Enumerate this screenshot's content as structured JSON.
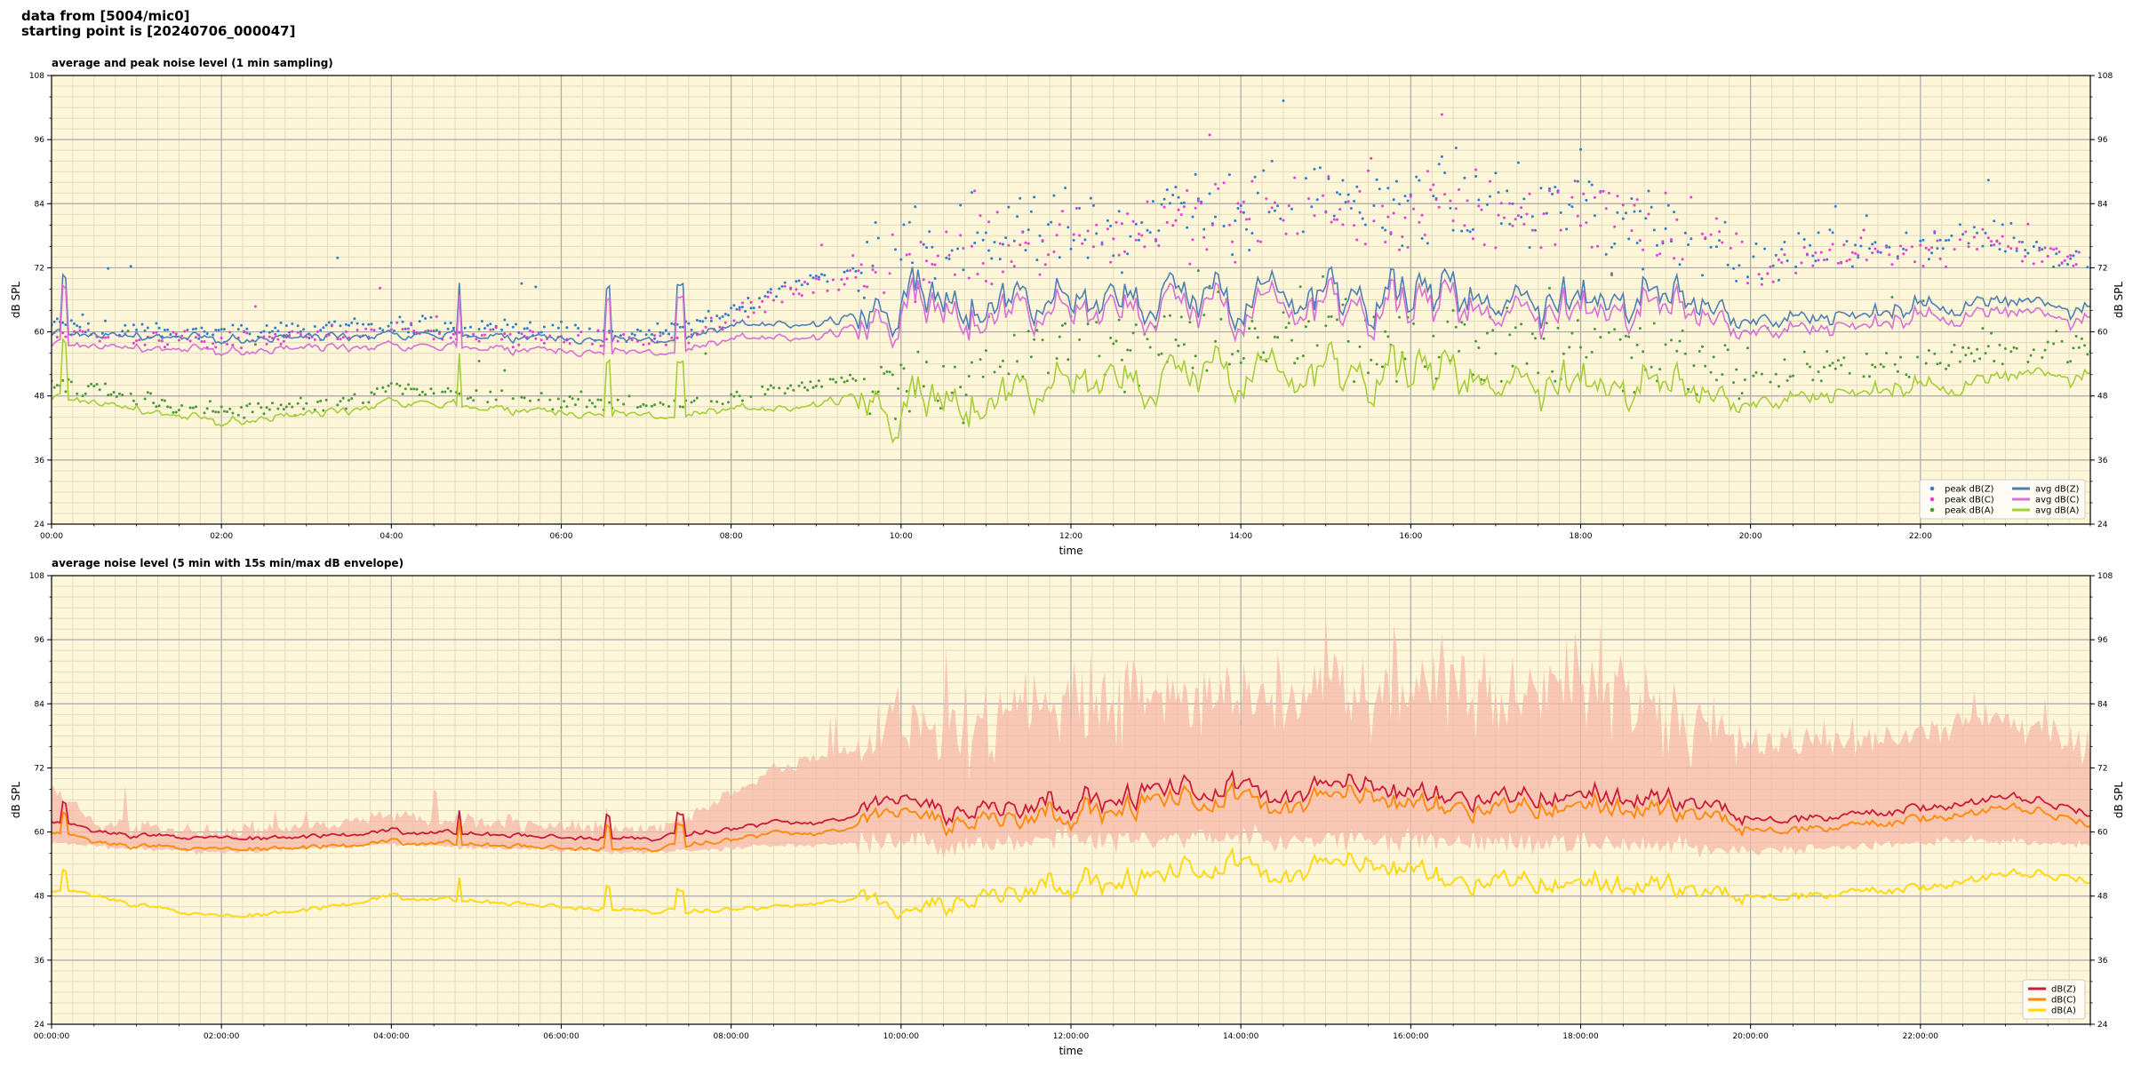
{
  "header": {
    "source_line": "data from [5004/mic0]",
    "start_line": "starting point is [20240706_000047]"
  },
  "colors": {
    "background": "#fdf6d8",
    "grid_major": "#a9a9a9",
    "grid_minor": "#e5dcc0",
    "peak_z": "#2f7fcf",
    "peak_c": "#e83cd8",
    "peak_a": "#4a9a3a",
    "avg_z": "#4e7fb5",
    "avg_c": "#d86fd8",
    "avg_a": "#a6cf3a",
    "env_fill": "#f5b8a8",
    "dbz": "#cc1a3a",
    "dbc": "#ff8800",
    "dba": "#ffd700"
  },
  "chart_data": [
    {
      "type": "line",
      "title": "average and peak noise level (1 min sampling)",
      "xlabel": "time",
      "ylabel": "dB SPL",
      "ylim": [
        24,
        108
      ],
      "xlim": [
        0,
        24
      ],
      "x_tick_labels": [
        "00:00",
        "02:00",
        "04:00",
        "06:00",
        "08:00",
        "10:00",
        "12:00",
        "14:00",
        "16:00",
        "18:00",
        "20:00",
        "22:00"
      ],
      "y_tick_labels": [
        "24",
        "36",
        "48",
        "60",
        "72",
        "84",
        "96",
        "108"
      ],
      "grid": true,
      "legend_position": "bottom-right",
      "legend": [
        "peak dB(Z)",
        "peak dB(C)",
        "peak dB(A)",
        "avg dB(Z)",
        "avg dB(C)",
        "avg dB(A)"
      ],
      "hours": [
        0,
        0.5,
        1,
        1.5,
        2,
        2.5,
        3,
        3.5,
        4,
        4.5,
        5,
        5.5,
        6,
        6.5,
        7,
        7.5,
        8,
        8.5,
        9,
        9.5,
        10,
        10.5,
        11,
        11.5,
        12,
        12.5,
        13,
        13.5,
        14,
        14.5,
        15,
        15.5,
        16,
        16.5,
        17,
        17.5,
        18,
        18.5,
        19,
        19.5,
        20,
        20.5,
        21,
        21.5,
        22,
        22.5,
        23,
        23.5,
        24
      ],
      "series": [
        {
          "name": "avg dB(Z)",
          "kind": "line",
          "values": [
            60,
            59.6,
            59.2,
            58.8,
            58.5,
            58.7,
            59,
            59.4,
            60,
            59.7,
            59.4,
            59.1,
            58.9,
            58.7,
            58.5,
            58.8,
            60.5,
            62,
            61.5,
            62.5,
            66,
            64.5,
            65.5,
            67,
            66,
            65,
            67.5,
            67,
            68.5,
            67,
            69,
            67.5,
            67.5,
            67.5,
            67,
            66.5,
            67,
            66.5,
            65.5,
            65,
            62.5,
            63,
            63,
            63.5,
            64.5,
            66,
            65.5,
            65,
            63.5
          ]
        },
        {
          "name": "avg dB(C)",
          "kind": "line",
          "values": [
            58,
            57.5,
            57,
            56.5,
            56.3,
            56.5,
            57,
            57.3,
            58,
            57.5,
            57.2,
            56.8,
            56.6,
            56.4,
            56.2,
            56.5,
            58,
            59.5,
            59,
            60.5,
            64,
            62.5,
            63.5,
            65,
            64,
            63,
            65.5,
            65,
            66.5,
            65,
            67,
            65.5,
            65.5,
            65.5,
            65,
            64.5,
            65,
            64.5,
            63.5,
            63,
            60.5,
            61,
            61,
            61.5,
            62.5,
            64,
            63.5,
            63,
            61.5
          ]
        },
        {
          "name": "avg dB(A)",
          "kind": "line",
          "values": [
            48,
            47,
            45.5,
            44,
            43,
            43.8,
            44.5,
            45.5,
            47.5,
            46.8,
            46,
            45.5,
            45,
            44.8,
            44.5,
            44.2,
            45,
            46,
            46.5,
            47.5,
            45,
            46,
            47.5,
            50,
            51,
            50,
            51.5,
            53,
            55,
            52,
            55,
            53,
            53.5,
            52,
            52,
            51,
            51.5,
            50,
            49,
            48.5,
            47,
            48,
            48.5,
            49,
            49.5,
            51,
            51.5,
            52,
            51
          ]
        },
        {
          "name": "peak dB(Z)",
          "kind": "scatter",
          "values": [
            61.5,
            61,
            60.5,
            60.2,
            60,
            60.3,
            60.5,
            61,
            61.5,
            61.2,
            61,
            60.6,
            60.4,
            60.2,
            60,
            61,
            64,
            68,
            70,
            72,
            76,
            75,
            77,
            80,
            80,
            81,
            82,
            83,
            83,
            83,
            84,
            84,
            84,
            84,
            84,
            83,
            84,
            82,
            80,
            78,
            72,
            75,
            76,
            76,
            77,
            78,
            78,
            76,
            72
          ]
        },
        {
          "name": "peak dB(C)",
          "kind": "scatter",
          "values": [
            60,
            59.5,
            59,
            58.6,
            58.4,
            58.6,
            59,
            59.4,
            60,
            59.7,
            59.4,
            59,
            58.8,
            58.6,
            58.4,
            59.4,
            62.5,
            66.5,
            68.5,
            70.5,
            74.5,
            73.5,
            75.5,
            78.5,
            78.5,
            79.5,
            80.5,
            81.5,
            81.5,
            81.5,
            82.5,
            82.5,
            82.5,
            82.5,
            82.5,
            81.5,
            82.5,
            80.5,
            78.5,
            76.5,
            70.5,
            73.5,
            74.5,
            74.5,
            75.5,
            76.5,
            76.5,
            74.5,
            70.5
          ]
        },
        {
          "name": "peak dB(A)",
          "kind": "scatter",
          "values": [
            50,
            49,
            47.5,
            46,
            45,
            45.8,
            46.5,
            47.5,
            49.5,
            48.8,
            48,
            47.5,
            47,
            46.8,
            46.5,
            46.2,
            47.5,
            49,
            50,
            52,
            51,
            52,
            53.5,
            56,
            57,
            56,
            57.5,
            59,
            61,
            58,
            61,
            59,
            59.5,
            58,
            58,
            57,
            57.5,
            56,
            55,
            54.5,
            52,
            53,
            53.5,
            54,
            54.5,
            56,
            56.5,
            57,
            56
          ]
        }
      ]
    },
    {
      "type": "area",
      "title": "average noise level (5 min with 15s min/max dB envelope)",
      "xlabel": "time",
      "ylabel": "dB SPL",
      "ylim": [
        24,
        108
      ],
      "xlim": [
        0,
        24
      ],
      "x_tick_labels": [
        "00:00:00",
        "02:00:00",
        "04:00:00",
        "06:00:00",
        "08:00:00",
        "10:00:00",
        "12:00:00",
        "14:00:00",
        "16:00:00",
        "18:00:00",
        "20:00:00",
        "22:00:00"
      ],
      "y_tick_labels": [
        "24",
        "36",
        "48",
        "60",
        "72",
        "84",
        "96",
        "108"
      ],
      "grid": true,
      "legend_position": "bottom-right",
      "legend": [
        "dB(Z)",
        "dB(C)",
        "dB(A)"
      ],
      "hours": [
        0,
        0.5,
        1,
        1.5,
        2,
        2.5,
        3,
        3.5,
        4,
        4.5,
        5,
        5.5,
        6,
        6.5,
        7,
        7.5,
        8,
        8.5,
        9,
        9.5,
        10,
        10.5,
        11,
        11.5,
        12,
        12.5,
        13,
        13.5,
        14,
        14.5,
        15,
        15.5,
        16,
        16.5,
        17,
        17.5,
        18,
        18.5,
        19,
        19.5,
        20,
        20.5,
        21,
        21.5,
        22,
        22.5,
        23,
        23.5,
        24
      ],
      "envelope_max": [
        68,
        62,
        61,
        60.5,
        60,
        60.5,
        61,
        62,
        63,
        62.5,
        62,
        61.5,
        61,
        61,
        60.5,
        63,
        67,
        72,
        74,
        76,
        80,
        79,
        80,
        83,
        84,
        84,
        86,
        86,
        86,
        85,
        88,
        86,
        86,
        86,
        85,
        84,
        86,
        84,
        82,
        80,
        76,
        77,
        78,
        78,
        79,
        80,
        81,
        79,
        74
      ],
      "envelope_min": [
        58,
        57.5,
        57,
        56.5,
        56.2,
        56.5,
        57,
        57.2,
        57.8,
        57.4,
        57,
        56.8,
        56.6,
        56.4,
        56.2,
        56.6,
        57,
        57.5,
        57.5,
        58,
        58,
        57.5,
        57.5,
        58,
        58.5,
        58.5,
        58.5,
        59,
        59,
        58.5,
        59,
        58.5,
        58.5,
        58,
        58,
        57.5,
        58,
        57.5,
        57,
        57,
        56.5,
        57,
        57,
        57.5,
        58,
        58.5,
        58.5,
        58,
        57.5
      ],
      "series": [
        {
          "name": "dB(Z)",
          "values": [
            62,
            60,
            59.5,
            59,
            58.7,
            58.8,
            59.2,
            59.5,
            60.2,
            60,
            59.6,
            59.3,
            59,
            58.8,
            58.7,
            59.5,
            60.5,
            62,
            61.5,
            63,
            68,
            63.5,
            64.5,
            66,
            66,
            65.5,
            68,
            67.5,
            68.5,
            67,
            69.5,
            68,
            67.5,
            67.5,
            67,
            66.5,
            67.5,
            66.5,
            65.5,
            65,
            62,
            62.5,
            63,
            63.5,
            64.5,
            65.5,
            66,
            65.5,
            63.5
          ]
        },
        {
          "name": "dB(C)",
          "values": [
            60,
            58,
            57.5,
            57,
            56.6,
            56.8,
            57.2,
            57.5,
            58.2,
            58,
            57.6,
            57.3,
            57,
            56.8,
            56.7,
            57.5,
            58.5,
            60,
            59.5,
            61,
            65.5,
            61.5,
            62.5,
            64,
            64,
            63.5,
            66,
            65.5,
            66.5,
            65,
            67.5,
            66,
            65.5,
            65.5,
            65,
            64.5,
            65.5,
            64.5,
            63.5,
            63,
            60,
            60.5,
            61,
            61.5,
            62.5,
            63.5,
            64,
            63.5,
            61.5
          ]
        },
        {
          "name": "dB(A)",
          "values": [
            49,
            48,
            46.5,
            45,
            44,
            44.5,
            45.5,
            46.5,
            48,
            47.5,
            47,
            46.5,
            46,
            45.5,
            45.2,
            45,
            45.5,
            46,
            46.5,
            47.5,
            46,
            46.5,
            48,
            50.5,
            51,
            50,
            51.5,
            53,
            54,
            52,
            55,
            53,
            53.5,
            51.5,
            51.5,
            50.5,
            51,
            50,
            49.5,
            48.5,
            47.5,
            48,
            48.5,
            49,
            49.5,
            51,
            51.5,
            52,
            51
          ]
        }
      ]
    }
  ]
}
